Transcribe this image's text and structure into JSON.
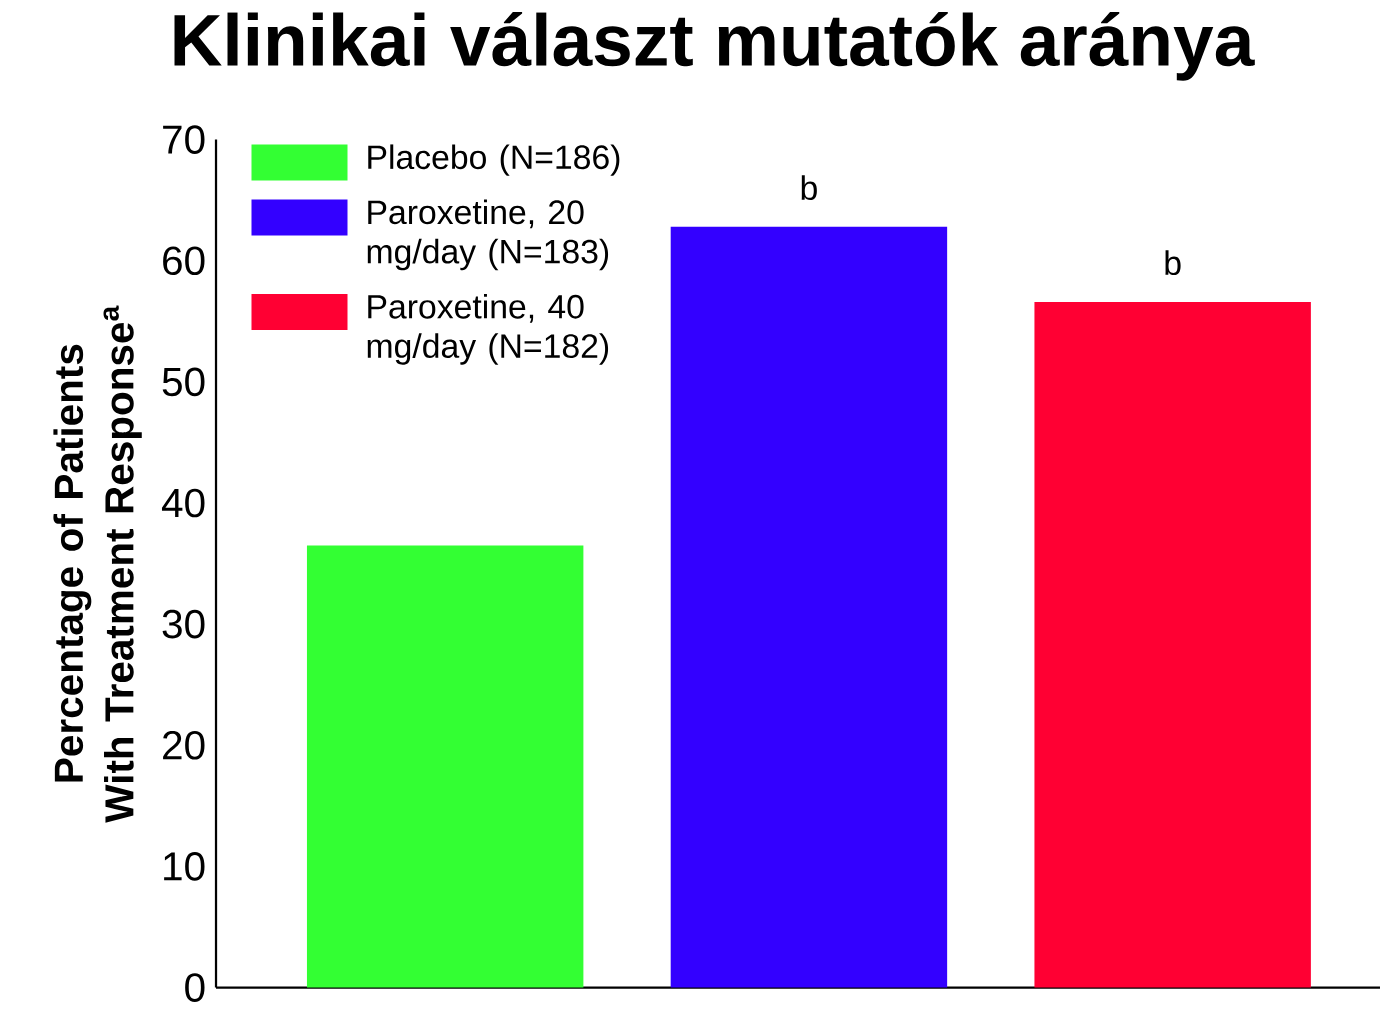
{
  "chart_data": {
    "type": "bar",
    "title": "Klinikai választ mutatók aránya",
    "ylabel": "Percentage of Patients With Treatment Response$^{a}$",
    "categories": [
      null,
      null,
      null
    ],
    "series": [
      {
        "name": "Placebo (N=186)",
        "color": "#33ff33",
        "values": [
          36.5,
          null,
          null
        ]
      },
      {
        "name": "Paroxetine, 20 mg/day (N=183)",
        "color": "#3300ff",
        "values": [
          null,
          62.8,
          null
        ]
      },
      {
        "name": "Paroxetine, 40 mg/day (N=182)",
        "color": "#ff0033",
        "values": [
          null,
          null,
          56.6
        ]
      }
    ],
    "ylim": [
      0,
      70
    ],
    "yticks": [
      0,
      10,
      20,
      30,
      40,
      50,
      60,
      70
    ],
    "annotations": [
      {
        "text": "b",
        "y": 62.8
      },
      {
        "text": "b",
        "y": 56.6
      }
    ],
    "legend": "top left",
    "grid": false
  }
}
